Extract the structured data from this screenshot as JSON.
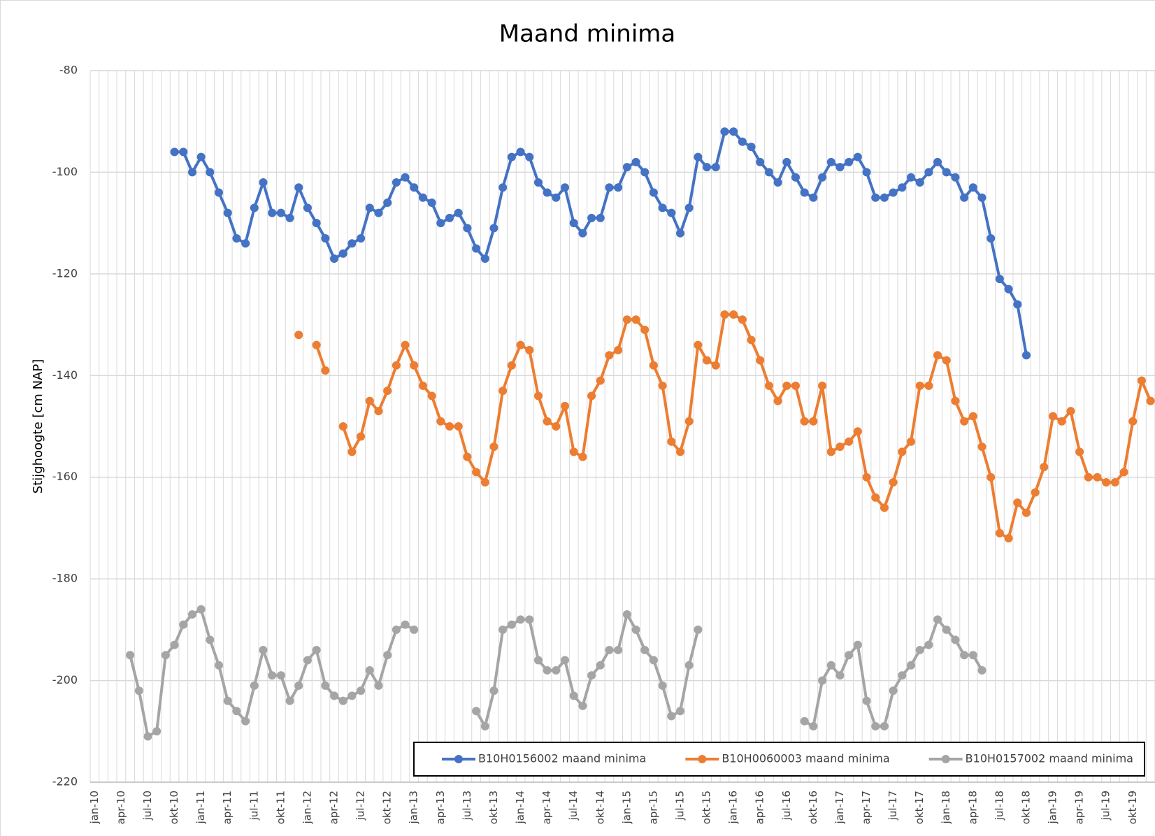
{
  "chart_data": {
    "type": "line",
    "title": "Maand minima",
    "y_label": "Stijghoogte [cm NAP]",
    "categories": [
      "jan-10",
      null,
      null,
      "apr-10",
      null,
      null,
      "jul-10",
      null,
      null,
      "okt-10",
      null,
      null,
      "jan-11",
      null,
      null,
      "apr-11",
      null,
      null,
      "jul-11",
      null,
      null,
      "okt-11",
      null,
      null,
      "jan-12",
      null,
      null,
      "apr-12",
      null,
      null,
      "jul-12",
      null,
      null,
      "okt-12",
      null,
      null,
      "jan-13",
      null,
      null,
      "apr-13",
      null,
      null,
      "jul-13",
      null,
      null,
      "okt-13",
      null,
      null,
      "jan-14",
      null,
      null,
      "apr-14",
      null,
      null,
      "jul-14",
      null,
      null,
      "okt-14",
      null,
      null,
      "jan-15",
      null,
      null,
      "apr-15",
      null,
      null,
      "jul-15",
      null,
      null,
      "okt-15",
      null,
      null,
      "jan-16",
      null,
      null,
      "apr-16",
      null,
      null,
      "jul-16",
      null,
      null,
      "okt-16",
      null,
      null,
      "jan-17",
      null,
      null,
      "apr-17",
      null,
      null,
      "jul-17",
      null,
      null,
      "okt-17",
      null,
      null,
      "jan-18",
      null,
      null,
      "apr-18",
      null,
      null,
      "jul-18",
      null,
      null,
      "okt-18",
      null,
      null,
      "jan-19",
      null,
      null,
      "apr-19",
      null,
      null,
      "jul-19",
      null,
      null,
      "okt-19",
      null,
      null
    ],
    "series": [
      {
        "name": "B10H0156002 maand minima",
        "color": "#4472c4",
        "values": [
          null,
          null,
          null,
          null,
          null,
          null,
          null,
          null,
          null,
          -96,
          -96,
          -100,
          -97,
          -100,
          -104,
          -108,
          -113,
          -114,
          -107,
          -102,
          -108,
          -108,
          -109,
          -103,
          -107,
          -110,
          -113,
          -117,
          -116,
          -114,
          -113,
          -107,
          -108,
          -106,
          -102,
          -101,
          -103,
          -105,
          -106,
          -110,
          -109,
          -108,
          -111,
          -115,
          -117,
          -111,
          -103,
          -97,
          -96,
          -97,
          -102,
          -104,
          -105,
          -103,
          -110,
          -112,
          -109,
          -109,
          -103,
          -103,
          -99,
          -98,
          -100,
          -104,
          -107,
          -108,
          -112,
          -107,
          -97,
          -99,
          -99,
          -92,
          -92,
          -94,
          -95,
          -98,
          -100,
          -102,
          -98,
          -101,
          -104,
          -105,
          -101,
          -98,
          -99,
          -98,
          -97,
          -100,
          -105,
          -105,
          -104,
          -103,
          -101,
          -102,
          -100,
          -98,
          -100,
          -101,
          -105,
          -103,
          -105,
          -113,
          -121,
          -123,
          -126,
          -136,
          null,
          null,
          null,
          null,
          null,
          null,
          null,
          null,
          null,
          null,
          null,
          null,
          null,
          null
        ]
      },
      {
        "name": "B10H0060003 maand minima",
        "color": "#ed7d31",
        "values": [
          null,
          null,
          null,
          null,
          null,
          null,
          null,
          null,
          null,
          null,
          null,
          null,
          null,
          null,
          null,
          null,
          null,
          null,
          null,
          null,
          null,
          null,
          null,
          -132,
          null,
          -134,
          -139,
          null,
          -150,
          -155,
          -152,
          -145,
          -147,
          -143,
          -138,
          -134,
          -138,
          -142,
          -144,
          -149,
          -150,
          -150,
          -156,
          -159,
          -161,
          -154,
          -143,
          -138,
          -134,
          -135,
          -144,
          -149,
          -150,
          -146,
          -155,
          -156,
          -144,
          -141,
          -136,
          -135,
          -129,
          -129,
          -131,
          -138,
          -142,
          -153,
          -155,
          -149,
          -134,
          -137,
          -138,
          -128,
          -128,
          -129,
          -133,
          -137,
          -142,
          -145,
          -142,
          -142,
          -149,
          -149,
          -142,
          -155,
          -154,
          -153,
          -151,
          -160,
          -164,
          -166,
          -161,
          -155,
          -153,
          -142,
          -142,
          -136,
          -137,
          -145,
          -149,
          -148,
          -154,
          -160,
          -171,
          -172,
          -165,
          -167,
          -163,
          -158,
          -148,
          -149,
          -147,
          -155,
          -160,
          -160,
          -161,
          -161,
          -159,
          -149,
          -141,
          -145
        ]
      },
      {
        "name": "B10H0157002 maand minima",
        "color": "#a5a5a5",
        "values": [
          null,
          null,
          null,
          null,
          -195,
          -202,
          -211,
          -210,
          -195,
          -193,
          -189,
          -187,
          -186,
          -192,
          -197,
          -204,
          -206,
          -208,
          -201,
          -194,
          -199,
          -199,
          -204,
          -201,
          -196,
          -194,
          -201,
          -203,
          -204,
          -203,
          -202,
          -198,
          -201,
          -195,
          -190,
          -189,
          -190,
          null,
          null,
          null,
          null,
          null,
          null,
          -206,
          -209,
          -202,
          -190,
          -189,
          -188,
          -188,
          -196,
          -198,
          -198,
          -196,
          -203,
          -205,
          -199,
          -197,
          -194,
          -194,
          -187,
          -190,
          -194,
          -196,
          -201,
          -207,
          -206,
          -197,
          -190,
          null,
          null,
          null,
          null,
          null,
          null,
          null,
          null,
          null,
          null,
          null,
          -208,
          -209,
          -200,
          -197,
          -199,
          -195,
          -193,
          -204,
          -209,
          -209,
          -202,
          -199,
          -197,
          -194,
          -193,
          -188,
          -190,
          -192,
          -195,
          -195,
          -198,
          null,
          null,
          null,
          null,
          null,
          null,
          null,
          null,
          null,
          null,
          null,
          null,
          null,
          null,
          null,
          null,
          null,
          null,
          null
        ]
      }
    ],
    "ylim": [
      -220,
      -80
    ],
    "yticks": [
      -220,
      -200,
      -180,
      -160,
      -140,
      -120,
      -100,
      -80
    ],
    "grid": true,
    "legend": "bottom-right"
  }
}
